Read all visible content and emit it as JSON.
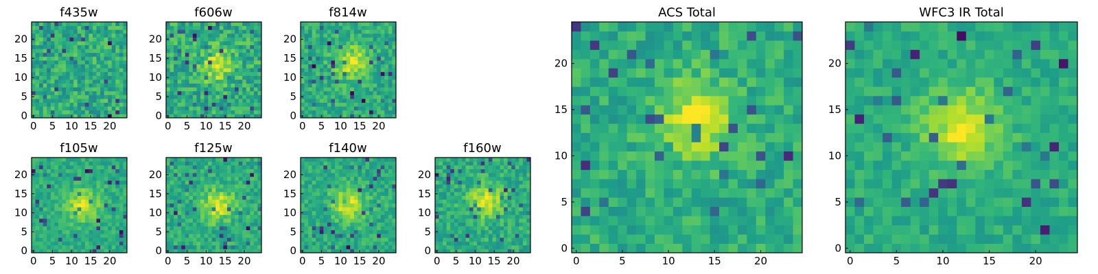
{
  "chart_data": [
    {
      "type": "heatmap",
      "title": "f435w",
      "grid_size": 25,
      "xlim": [
        0,
        24
      ],
      "ylim": [
        0,
        24
      ],
      "xticks": [
        0,
        5,
        10,
        15,
        20
      ],
      "yticks": [
        0,
        5,
        10,
        15,
        20
      ],
      "colormap": "viridis",
      "peak": null,
      "noise": 0.16,
      "seed": 435
    },
    {
      "type": "heatmap",
      "title": "f606w",
      "grid_size": 25,
      "xlim": [
        0,
        24
      ],
      "ylim": [
        0,
        24
      ],
      "xticks": [
        0,
        5,
        10,
        15,
        20
      ],
      "yticks": [
        0,
        5,
        10,
        15,
        20
      ],
      "colormap": "viridis",
      "peak": [
        13,
        13
      ],
      "noise": 0.16,
      "seed": 606
    },
    {
      "type": "heatmap",
      "title": "f814w",
      "grid_size": 25,
      "xlim": [
        0,
        24
      ],
      "ylim": [
        0,
        24
      ],
      "xticks": [
        0,
        5,
        10,
        15,
        20
      ],
      "yticks": [
        0,
        5,
        10,
        15,
        20
      ],
      "colormap": "viridis",
      "peak": [
        13,
        14
      ],
      "noise": 0.13,
      "seed": 814
    },
    {
      "type": "heatmap",
      "title": "f105w",
      "grid_size": 25,
      "xlim": [
        0,
        24
      ],
      "ylim": [
        0,
        24
      ],
      "xticks": [
        0,
        5,
        10,
        15,
        20
      ],
      "yticks": [
        0,
        5,
        10,
        15,
        20
      ],
      "colormap": "viridis",
      "peak": [
        13,
        12
      ],
      "noise": 0.1,
      "seed": 105
    },
    {
      "type": "heatmap",
      "title": "f125w",
      "grid_size": 25,
      "xlim": [
        0,
        24
      ],
      "ylim": [
        0,
        24
      ],
      "xticks": [
        0,
        5,
        10,
        15,
        20
      ],
      "yticks": [
        0,
        5,
        10,
        15,
        20
      ],
      "colormap": "viridis",
      "peak": [
        13,
        12
      ],
      "noise": 0.12,
      "seed": 125
    },
    {
      "type": "heatmap",
      "title": "f140w",
      "grid_size": 25,
      "xlim": [
        0,
        24
      ],
      "ylim": [
        0,
        24
      ],
      "xticks": [
        0,
        5,
        10,
        15,
        20
      ],
      "yticks": [
        0,
        5,
        10,
        15,
        20
      ],
      "colormap": "viridis",
      "peak": [
        12,
        12
      ],
      "noise": 0.11,
      "seed": 140
    },
    {
      "type": "heatmap",
      "title": "f160w",
      "grid_size": 25,
      "xlim": [
        0,
        24
      ],
      "ylim": [
        0,
        24
      ],
      "xticks": [
        0,
        5,
        10,
        15,
        20
      ],
      "yticks": [
        0,
        5,
        10,
        15,
        20
      ],
      "colormap": "viridis",
      "peak": [
        13,
        13
      ],
      "noise": 0.12,
      "seed": 160
    },
    {
      "type": "heatmap",
      "title": "ACS Total",
      "grid_size": 25,
      "xlim": [
        0,
        24
      ],
      "ylim": [
        0,
        24
      ],
      "xticks": [
        0,
        5,
        10,
        15,
        20
      ],
      "yticks": [
        0,
        5,
        10,
        15,
        20
      ],
      "colormap": "viridis",
      "peak": [
        13,
        14
      ],
      "noise": 0.12,
      "seed": 999
    },
    {
      "type": "heatmap",
      "title": "WFC3 IR Total",
      "grid_size": 25,
      "xlim": [
        0,
        24
      ],
      "ylim": [
        0,
        24
      ],
      "xticks": [
        0,
        5,
        10,
        15,
        20
      ],
      "yticks": [
        0,
        5,
        10,
        15,
        20
      ],
      "colormap": "viridis",
      "peak": [
        12,
        13
      ],
      "noise": 0.09,
      "seed": 777
    }
  ]
}
